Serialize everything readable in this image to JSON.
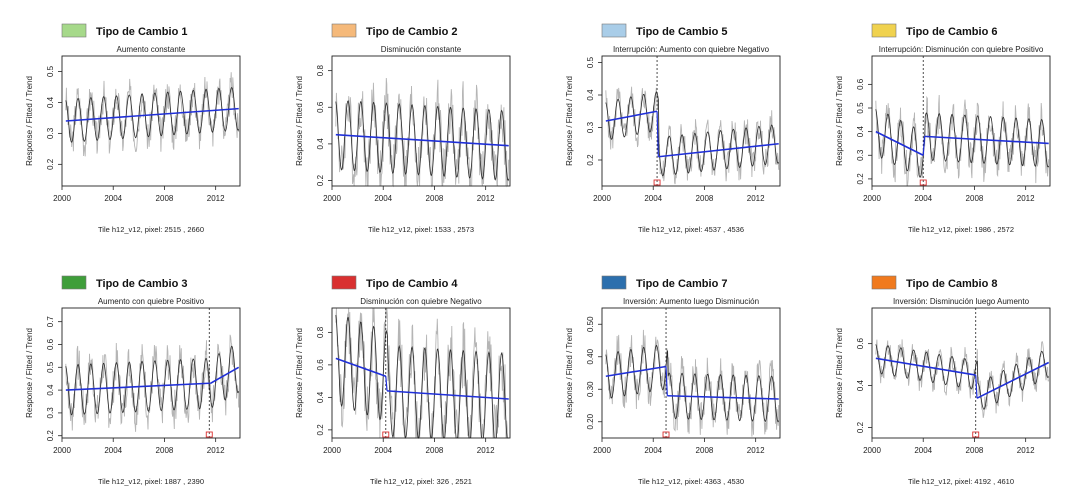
{
  "chart_data": [
    {
      "type": "line",
      "legend_title": "Tipo de Cambio 1",
      "legend_color": "#a6d98a",
      "title": "Aumento constante",
      "ylabel": "Response / Fitted / Trend",
      "caption": "Tile h12_v12, pixel: 2515 , 2660",
      "xlim": [
        2000,
        2013.9
      ],
      "ylim": [
        0.13,
        0.55
      ],
      "xticks": [
        2000,
        2004,
        2008,
        2012
      ],
      "yticks": [
        0.2,
        0.3,
        0.4,
        0.5
      ],
      "amplitude": 0.07,
      "breaks": [],
      "break_marker": false,
      "trend": [
        {
          "x": [
            2000.3,
            2013.8
          ],
          "y": [
            0.34,
            0.38
          ]
        }
      ]
    },
    {
      "type": "line",
      "legend_title": "Tipo de Cambio 2",
      "legend_color": "#f5b97a",
      "title": "Disminución constante",
      "ylabel": "Response / Fitted / Trend",
      "caption": "Tile h12_v12, pixel: 1533 , 2573",
      "xlim": [
        2000,
        2013.9
      ],
      "ylim": [
        0.17,
        0.88
      ],
      "xticks": [
        2000,
        2004,
        2008,
        2012
      ],
      "yticks": [
        0.2,
        0.4,
        0.6,
        0.8
      ],
      "amplitude": 0.19,
      "breaks": [],
      "break_marker": false,
      "trend": [
        {
          "x": [
            2000.3,
            2013.8
          ],
          "y": [
            0.45,
            0.39
          ]
        }
      ]
    },
    {
      "type": "line",
      "legend_title": "Tipo de Cambio 5",
      "legend_color": "#a9cde8",
      "title": "Interrupción: Aumento con quiebre Negativo",
      "ylabel": "Response / Fitted / Trend",
      "caption": "Tile h12_v12, pixel: 4537 , 4536",
      "xlim": [
        2000,
        2013.9
      ],
      "ylim": [
        0.12,
        0.52
      ],
      "xticks": [
        2000,
        2004,
        2008,
        2012
      ],
      "yticks": [
        0.2,
        0.3,
        0.4,
        0.5
      ],
      "amplitude": 0.06,
      "breaks": [
        2004.3
      ],
      "break_marker": true,
      "trend": [
        {
          "x": [
            2000.3,
            2004.3
          ],
          "y": [
            0.32,
            0.35
          ]
        },
        {
          "x": [
            2004.4,
            2013.8
          ],
          "y": [
            0.21,
            0.25
          ]
        }
      ]
    },
    {
      "type": "line",
      "legend_title": "Tipo de Cambio 6",
      "legend_color": "#f0d24f",
      "title": "Interrupción: Disminución con quiebre Positivo",
      "ylabel": "Response / Fitted / Trend",
      "caption": "Tile h12_v12, pixel: 1986 , 2572",
      "xlim": [
        2000,
        2013.9
      ],
      "ylim": [
        0.17,
        0.72
      ],
      "xticks": [
        2000,
        2004,
        2008,
        2012
      ],
      "yticks": [
        0.2,
        0.3,
        0.4,
        0.5,
        0.6
      ],
      "amplitude": 0.1,
      "breaks": [
        2004.0
      ],
      "break_marker": true,
      "trend": [
        {
          "x": [
            2000.3,
            2004.0
          ],
          "y": [
            0.4,
            0.3
          ]
        },
        {
          "x": [
            2004.1,
            2013.8
          ],
          "y": [
            0.38,
            0.35
          ]
        }
      ]
    },
    {
      "type": "line",
      "legend_title": "Tipo de Cambio 3",
      "legend_color": "#3f9e3a",
      "title": "Aumento con quiebre Positivo",
      "ylabel": "Response / Fitted / Trend",
      "caption": "Tile h12_v12, pixel: 1887 , 2390",
      "xlim": [
        2000,
        2013.9
      ],
      "ylim": [
        0.19,
        0.76
      ],
      "xticks": [
        2000,
        2004,
        2008,
        2012
      ],
      "yticks": [
        0.2,
        0.3,
        0.4,
        0.5,
        0.6,
        0.7
      ],
      "amplitude": 0.11,
      "breaks": [
        2011.5
      ],
      "break_marker": true,
      "trend": [
        {
          "x": [
            2000.3,
            2011.5
          ],
          "y": [
            0.4,
            0.43
          ]
        },
        {
          "x": [
            2011.6,
            2013.8
          ],
          "y": [
            0.43,
            0.5
          ]
        }
      ]
    },
    {
      "type": "line",
      "legend_title": "Tipo de Cambio 4",
      "legend_color": "#d93030",
      "title": "Disminución con quiebre Negativo",
      "ylabel": "Response / Fitted / Trend",
      "caption": "Tile h12_v12, pixel: 326 , 2521",
      "xlim": [
        2000,
        2013.9
      ],
      "ylim": [
        0.15,
        0.95
      ],
      "xticks": [
        2000,
        2004,
        2008,
        2012
      ],
      "yticks": [
        0.2,
        0.4,
        0.6,
        0.8
      ],
      "amplitude": 0.28,
      "breaks": [
        2004.2
      ],
      "break_marker": true,
      "trend": [
        {
          "x": [
            2000.3,
            2004.2
          ],
          "y": [
            0.64,
            0.53
          ]
        },
        {
          "x": [
            2004.3,
            2013.8
          ],
          "y": [
            0.44,
            0.39
          ]
        }
      ]
    },
    {
      "type": "line",
      "legend_title": "Tipo de Cambio 7",
      "legend_color": "#2c6fad",
      "title": "Inversión: Aumento luego Disminución",
      "ylabel": "Response / Fitted / Trend",
      "caption": "Tile h12_v12, pixel: 4363 , 4530",
      "xlim": [
        2000,
        2013.9
      ],
      "ylim": [
        0.15,
        0.55
      ],
      "xticks": [
        2000,
        2004,
        2008,
        2012
      ],
      "yticks": [
        0.2,
        0.3,
        0.4,
        0.5
      ],
      "ytick_labels": [
        "0.20",
        "0.30",
        "0.40",
        "0.50"
      ],
      "amplitude": 0.07,
      "breaks": [
        2005.0
      ],
      "break_marker": true,
      "trend": [
        {
          "x": [
            2000.3,
            2005.0
          ],
          "y": [
            0.34,
            0.37
          ]
        },
        {
          "x": [
            2005.1,
            2013.8
          ],
          "y": [
            0.28,
            0.27
          ]
        }
      ]
    },
    {
      "type": "line",
      "legend_title": "Tipo de Cambio 8",
      "legend_color": "#f07a1e",
      "title": "Inversión: Disminución luego Aumento",
      "ylabel": "Response / Fitted / Trend",
      "caption": "Tile h12_v12, pixel: 4192 , 4610",
      "xlim": [
        2000,
        2013.9
      ],
      "ylim": [
        0.15,
        0.77
      ],
      "xticks": [
        2000,
        2004,
        2008,
        2012
      ],
      "yticks": [
        0.2,
        0.4,
        0.6
      ],
      "amplitude": 0.07,
      "breaks": [
        2008.1
      ],
      "break_marker": true,
      "trend": [
        {
          "x": [
            2000.3,
            2008.1
          ],
          "y": [
            0.53,
            0.45
          ]
        },
        {
          "x": [
            2008.2,
            2013.8
          ],
          "y": [
            0.34,
            0.51
          ]
        }
      ]
    }
  ]
}
